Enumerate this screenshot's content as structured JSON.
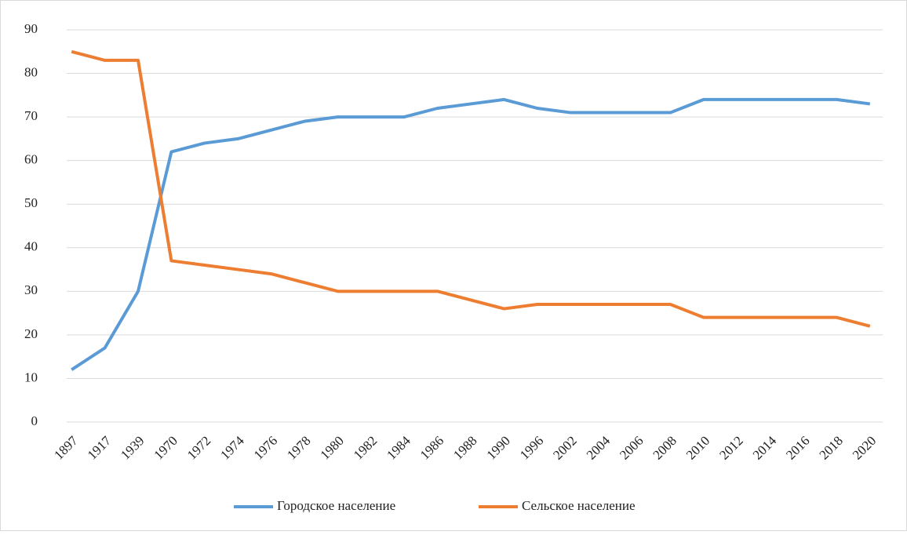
{
  "chart_data": {
    "type": "line",
    "categories": [
      "1897",
      "1917",
      "1939",
      "1970",
      "1972",
      "1974",
      "1976",
      "1978",
      "1980",
      "1982",
      "1984",
      "1986",
      "1988",
      "1990",
      "1996",
      "2002",
      "2004",
      "2006",
      "2008",
      "2010",
      "2012",
      "2014",
      "2016",
      "2018",
      "2020"
    ],
    "series": [
      {
        "name": "Городское население",
        "color": "#5b9bd5",
        "values": [
          12,
          17,
          30,
          62,
          64,
          65,
          67,
          69,
          70,
          70,
          70,
          72,
          73,
          74,
          72,
          71,
          71,
          71,
          71,
          74,
          74,
          74,
          74,
          74,
          73
        ]
      },
      {
        "name": "Сельское население",
        "color": "#ed7d31",
        "values": [
          85,
          83,
          83,
          37,
          36,
          35,
          34,
          32,
          30,
          30,
          30,
          30,
          28,
          26,
          27,
          27,
          27,
          27,
          27,
          24,
          24,
          24,
          24,
          24,
          22
        ]
      }
    ],
    "ylim": [
      0,
      90
    ],
    "yticks": [
      0,
      10,
      20,
      30,
      40,
      50,
      60,
      70,
      80,
      90
    ],
    "grid": true,
    "legend": "bottom"
  }
}
